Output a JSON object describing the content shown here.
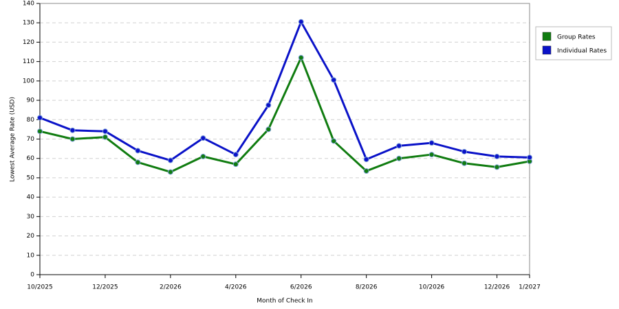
{
  "chart_data": {
    "type": "line",
    "x_label": "Month of Check In",
    "y_label": "Lowest Average Rate (USD)",
    "categories": [
      "10/2025",
      null,
      "12/2025",
      null,
      "2/2026",
      null,
      "4/2026",
      null,
      "6/2026",
      null,
      "8/2026",
      null,
      "10/2026",
      null,
      "12/2026",
      "1/2027"
    ],
    "series": [
      {
        "name": "Group Rates",
        "color": "#107c10",
        "values": [
          74,
          70,
          71,
          58,
          53,
          61,
          57,
          75,
          112,
          69,
          53.5,
          60,
          62,
          57.5,
          55.5,
          58.5
        ]
      },
      {
        "name": "Individual Rates",
        "color": "#0a12c8",
        "values": [
          81,
          74.5,
          74,
          64,
          59,
          70.5,
          62,
          87.5,
          130.5,
          100.5,
          59.5,
          66.5,
          68,
          63.5,
          61,
          60.5
        ]
      }
    ],
    "ylim": [
      0,
      140
    ],
    "yticks": [
      0,
      10,
      20,
      30,
      40,
      50,
      60,
      70,
      80,
      90,
      100,
      110,
      120,
      130,
      140
    ],
    "grid": true,
    "legend": "right"
  }
}
